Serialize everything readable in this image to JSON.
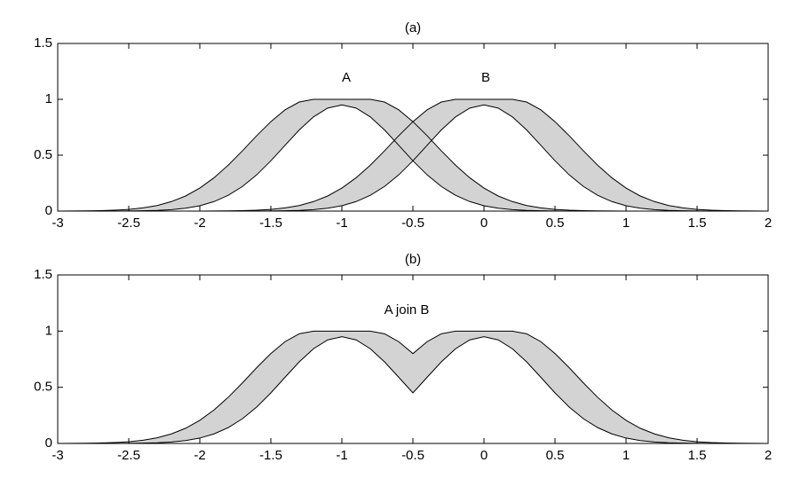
{
  "chart_data": [
    {
      "type": "interval",
      "title": "(a)",
      "annotations": [
        "A",
        "B"
      ],
      "x": [
        -3,
        -2.9,
        -2.8,
        -2.7,
        -2.6,
        -2.5,
        -2.4,
        -2.3,
        -2.2,
        -2.1,
        -2,
        -1.9,
        -1.8,
        -1.7,
        -1.6,
        -1.5,
        -1.4,
        -1.3,
        -1.2,
        -1.1,
        -1,
        -0.9,
        -0.8,
        -0.7,
        -0.6,
        -0.5,
        -0.4,
        -0.3,
        -0.2,
        -0.1,
        0,
        0.1,
        0.2,
        0.3,
        0.4,
        0.5,
        0.6,
        0.7,
        0.8,
        0.9,
        1,
        1.1,
        1.2,
        1.3,
        1.4,
        1.5,
        1.6,
        1.7,
        1.8,
        1.9,
        2
      ],
      "series": [
        {
          "color": "#d3d3d3",
          "upper": [
            0,
            0.001,
            0.002,
            0.004,
            0.008,
            0.015,
            0.029,
            0.05,
            0.085,
            0.135,
            0.206,
            0.298,
            0.411,
            0.539,
            0.674,
            0.8,
            0.906,
            0.976,
            1,
            1,
            1,
            1,
            1,
            0.976,
            0.906,
            0.8,
            0.674,
            0.539,
            0.411,
            0.298,
            0.206,
            0.135,
            0.085,
            0.05,
            0.029,
            0.015,
            0.008,
            0.004,
            0.002,
            0.001,
            0,
            0,
            0,
            0,
            0,
            0,
            0,
            0,
            0,
            0,
            0
          ],
          "lower": [
            0,
            0,
            0,
            0,
            0,
            0.001,
            0.003,
            0.006,
            0.013,
            0.026,
            0.048,
            0.085,
            0.141,
            0.22,
            0.324,
            0.45,
            0.589,
            0.726,
            0.843,
            0.922,
            0.95,
            0.922,
            0.843,
            0.726,
            0.589,
            0.45,
            0.324,
            0.22,
            0.141,
            0.085,
            0.048,
            0.026,
            0.013,
            0.006,
            0.003,
            0.001,
            0,
            0,
            0,
            0,
            0,
            0,
            0,
            0,
            0,
            0,
            0,
            0,
            0,
            0,
            0
          ]
        },
        {
          "color": "#d3d3d3",
          "upper": [
            0,
            0,
            0,
            0,
            0,
            0,
            0,
            0,
            0,
            0,
            0,
            0.001,
            0.002,
            0.004,
            0.008,
            0.015,
            0.029,
            0.05,
            0.085,
            0.135,
            0.206,
            0.298,
            0.411,
            0.539,
            0.674,
            0.8,
            0.906,
            0.976,
            1,
            1,
            1,
            1,
            1,
            0.976,
            0.906,
            0.8,
            0.674,
            0.539,
            0.411,
            0.298,
            0.206,
            0.135,
            0.085,
            0.05,
            0.029,
            0.015,
            0.008,
            0.004,
            0.002,
            0.001,
            0
          ],
          "lower": [
            0,
            0,
            0,
            0,
            0,
            0,
            0,
            0,
            0,
            0,
            0,
            0,
            0,
            0,
            0,
            0.001,
            0.003,
            0.006,
            0.013,
            0.026,
            0.048,
            0.085,
            0.141,
            0.22,
            0.324,
            0.45,
            0.589,
            0.726,
            0.843,
            0.922,
            0.95,
            0.922,
            0.843,
            0.726,
            0.589,
            0.45,
            0.324,
            0.22,
            0.141,
            0.085,
            0.048,
            0.026,
            0.013,
            0.006,
            0.003,
            0.001,
            0,
            0,
            0,
            0,
            0
          ]
        }
      ],
      "xlim": [
        -3,
        2
      ],
      "xticks": [
        -3,
        -2.5,
        -2,
        -1.5,
        -1,
        -0.5,
        0,
        0.5,
        1,
        1.5,
        2
      ],
      "ylim": [
        0,
        1.5
      ],
      "yticks": [
        0,
        0.5,
        1,
        1.5
      ],
      "grid": false
    },
    {
      "type": "interval",
      "title": "(b)",
      "annotations": [
        "A join B"
      ],
      "x": [
        -3,
        -2.9,
        -2.8,
        -2.7,
        -2.6,
        -2.5,
        -2.4,
        -2.3,
        -2.2,
        -2.1,
        -2,
        -1.9,
        -1.8,
        -1.7,
        -1.6,
        -1.5,
        -1.4,
        -1.3,
        -1.2,
        -1.1,
        -1,
        -0.9,
        -0.8,
        -0.7,
        -0.6,
        -0.5,
        -0.4,
        -0.3,
        -0.2,
        -0.1,
        0,
        0.1,
        0.2,
        0.3,
        0.4,
        0.5,
        0.6,
        0.7,
        0.8,
        0.9,
        1,
        1.1,
        1.2,
        1.3,
        1.4,
        1.5,
        1.6,
        1.7,
        1.8,
        1.9,
        2
      ],
      "series": [
        {
          "color": "#d3d3d3",
          "upper": [
            0,
            0.001,
            0.002,
            0.004,
            0.008,
            0.015,
            0.029,
            0.05,
            0.085,
            0.135,
            0.206,
            0.298,
            0.411,
            0.539,
            0.674,
            0.8,
            0.906,
            0.976,
            1,
            1,
            1,
            1,
            1,
            0.976,
            0.906,
            0.8,
            0.906,
            0.976,
            1,
            1,
            1,
            1,
            1,
            0.976,
            0.906,
            0.8,
            0.674,
            0.539,
            0.411,
            0.298,
            0.206,
            0.135,
            0.085,
            0.05,
            0.029,
            0.015,
            0.008,
            0.004,
            0.002,
            0.001,
            0
          ],
          "lower": [
            0,
            0,
            0,
            0,
            0,
            0.001,
            0.003,
            0.006,
            0.013,
            0.026,
            0.048,
            0.085,
            0.141,
            0.22,
            0.324,
            0.45,
            0.589,
            0.726,
            0.843,
            0.922,
            0.95,
            0.922,
            0.843,
            0.726,
            0.589,
            0.45,
            0.589,
            0.726,
            0.843,
            0.922,
            0.95,
            0.922,
            0.843,
            0.726,
            0.589,
            0.45,
            0.324,
            0.22,
            0.141,
            0.085,
            0.048,
            0.026,
            0.013,
            0.006,
            0.003,
            0.001,
            0,
            0,
            0,
            0,
            0
          ]
        }
      ],
      "xlim": [
        -3,
        2
      ],
      "xticks": [
        -3,
        -2.5,
        -2,
        -1.5,
        -1,
        -0.5,
        0,
        0.5,
        1,
        1.5,
        2
      ],
      "ylim": [
        0,
        1.5
      ],
      "yticks": [
        0,
        0.5,
        1,
        1.5
      ],
      "grid": false
    }
  ]
}
